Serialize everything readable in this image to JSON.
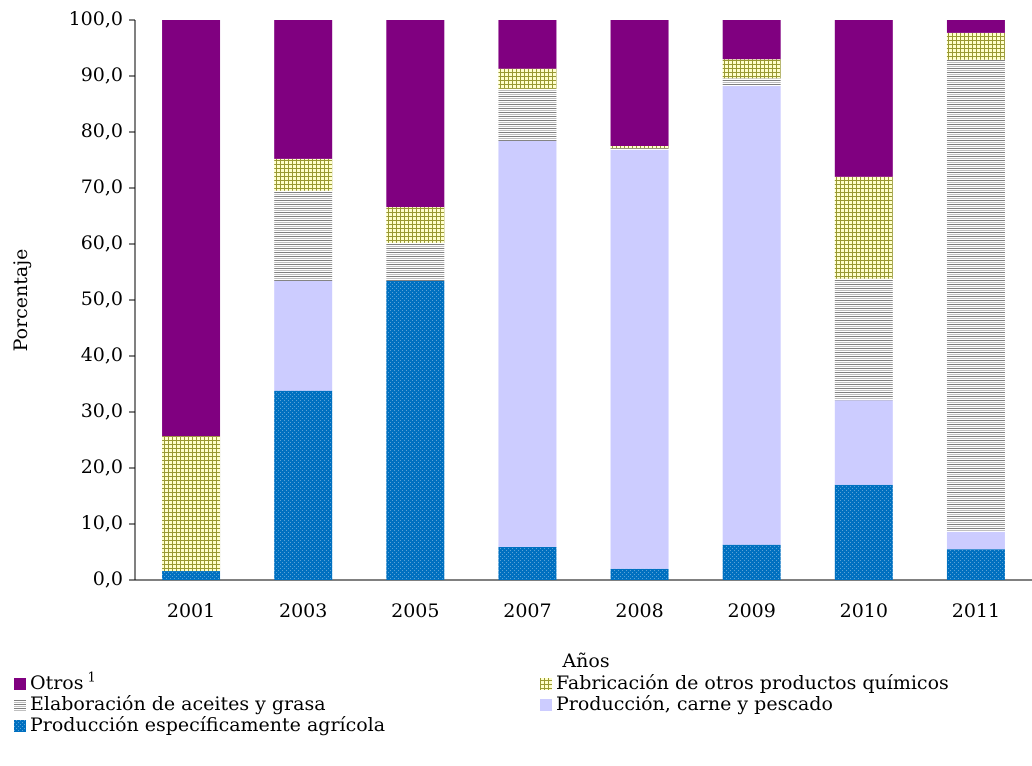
{
  "chart_data": {
    "type": "stacked-bar",
    "x_label": "Años",
    "y_label": "Porcentaje",
    "categories": [
      "2001",
      "2003",
      "2005",
      "2007",
      "2008",
      "2009",
      "2010",
      "2011"
    ],
    "ylim": [
      0,
      100
    ],
    "yticks": [
      {
        "value": 0,
        "label": "0,0"
      },
      {
        "value": 10,
        "label": "10,0"
      },
      {
        "value": 20,
        "label": "20,0"
      },
      {
        "value": 30,
        "label": "30,0"
      },
      {
        "value": 40,
        "label": "40,0"
      },
      {
        "value": 50,
        "label": "50,0"
      },
      {
        "value": 60,
        "label": "60,0"
      },
      {
        "value": 70,
        "label": "70,0"
      },
      {
        "value": 80,
        "label": "80,0"
      },
      {
        "value": 90,
        "label": "90,0"
      },
      {
        "value": 100,
        "label": "100,0"
      }
    ],
    "series": [
      {
        "name": "Producción específicamente agrícola",
        "color": "#0070c0",
        "pattern": "dots",
        "values": [
          1.6,
          33.8,
          53.4,
          5.9,
          2.0,
          6.3,
          17.0,
          5.5
        ]
      },
      {
        "name": "Producción, carne y pescado",
        "color": "#ccccff",
        "pattern": "solid",
        "values": [
          0,
          19.6,
          0,
          72.5,
          74.8,
          81.9,
          15.1,
          3.1
        ]
      },
      {
        "name": "Elaboración de aceites y grasa",
        "color": "#808080",
        "pattern": "lines",
        "values": [
          0,
          16.1,
          6.8,
          9.3,
          0.3,
          1.4,
          21.7,
          84.3
        ]
      },
      {
        "name": "Fabricación de otros productos químicos",
        "color": "#999933",
        "pattern": "grid",
        "values": [
          24.1,
          5.7,
          6.4,
          3.6,
          0.4,
          3.4,
          18.2,
          4.8
        ]
      },
      {
        "name": "Otros",
        "name_sup": "1",
        "color": "#800080",
        "pattern": "solid",
        "values": [
          74.3,
          24.8,
          33.4,
          8.7,
          22.5,
          7.0,
          28.0,
          2.3
        ]
      }
    ]
  }
}
